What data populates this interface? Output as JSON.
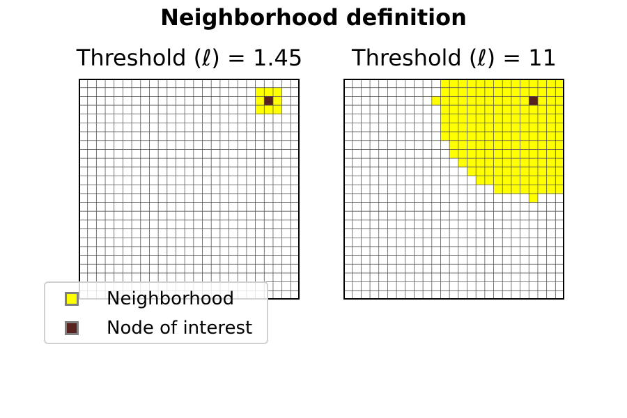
{
  "figure": {
    "title": "Neighborhood definition"
  },
  "grid": {
    "size": 25,
    "colors": {
      "neighborhood": "#ffff00",
      "node": "#58231e",
      "empty": "#ffffff",
      "line": "#555555",
      "frame": "#000000"
    }
  },
  "panels": [
    {
      "title": "Threshold (ℓ) = 1.45",
      "threshold": 1.45,
      "node": {
        "row": 2,
        "col": 21
      }
    },
    {
      "title": "Threshold (ℓ) = 11",
      "threshold": 11,
      "node": {
        "row": 2,
        "col": 21
      }
    }
  ],
  "legend": {
    "items": [
      {
        "label": "Neighborhood",
        "color": "#ffff00"
      },
      {
        "label": "Node of interest",
        "color": "#58231e"
      }
    ]
  }
}
